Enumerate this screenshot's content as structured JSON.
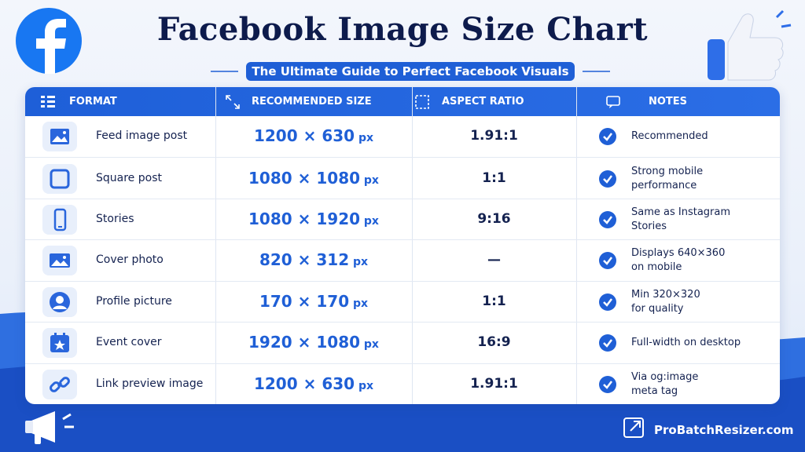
{
  "header": {
    "title": "Facebook Image Size Chart",
    "subtitle": "The Ultimate Guide to Perfect Facebook Visuals"
  },
  "table": {
    "columns": [
      "FORMAT",
      "RECOMMENDED SIZE",
      "ASPECT RATIO",
      "NOTES"
    ],
    "rows": [
      {
        "format": "Feed image post",
        "size": "1200 × 630",
        "unit": "px",
        "ratio": "1.91:1",
        "notes": [
          "Recommended"
        ]
      },
      {
        "format": "Square post",
        "size": "1080 × 1080",
        "unit": "px",
        "ratio": "1:1",
        "notes": [
          "Strong mobile",
          "performance"
        ]
      },
      {
        "format": "Stories",
        "size": "1080 × 1920",
        "unit": "px",
        "ratio": "9:16",
        "notes": [
          "Same as Instagram",
          "Stories"
        ]
      },
      {
        "format": "Cover photo",
        "size": "820 × 312",
        "unit": "px",
        "ratio": "—",
        "notes": [
          "Displays 640×360",
          "on mobile"
        ]
      },
      {
        "format": "Profile picture",
        "size": "170 × 170",
        "unit": "px",
        "ratio": "1:1",
        "notes": [
          "Min 320×320",
          "for quality"
        ]
      },
      {
        "format": "Event cover",
        "size": "1920 × 1080",
        "unit": "px",
        "ratio": "16:9",
        "notes": [
          "Full-width on desktop"
        ]
      },
      {
        "format": "Link preview image",
        "size": "1200 × 630",
        "unit": "px",
        "ratio": "1.91:1",
        "notes": [
          "Via og:image",
          "meta tag"
        ]
      }
    ]
  },
  "footer": {
    "site": "ProBatchResizer.com"
  }
}
